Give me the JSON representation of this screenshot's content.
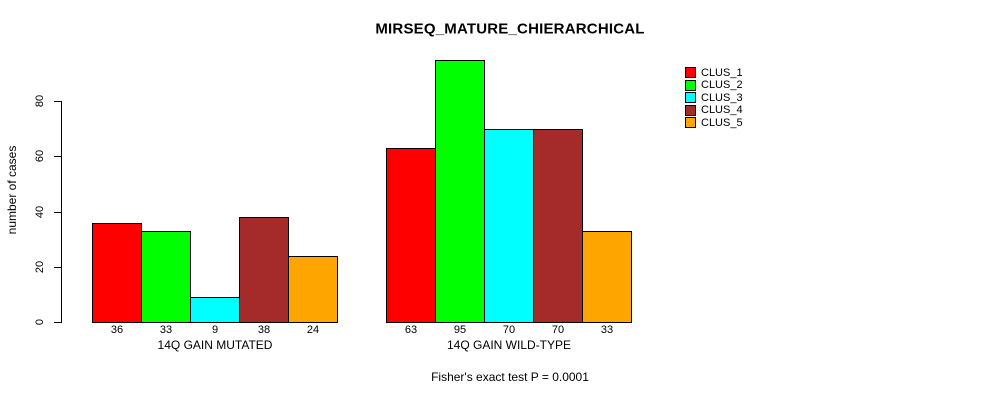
{
  "chart_data": {
    "type": "bar",
    "title": "MIRSEQ_MATURE_CHIERARCHICAL",
    "xlabel": "",
    "ylabel": "number of cases",
    "categories": [
      "14Q GAIN MUTATED",
      "14Q GAIN WILD-TYPE"
    ],
    "series": [
      {
        "name": "CLUS_1",
        "color": "#FF0000",
        "values": [
          36,
          63
        ]
      },
      {
        "name": "CLUS_2",
        "color": "#00FF00",
        "values": [
          33,
          95
        ]
      },
      {
        "name": "CLUS_3",
        "color": "#00FFFF",
        "values": [
          9,
          70
        ]
      },
      {
        "name": "CLUS_4",
        "color": "#A52A2A",
        "values": [
          38,
          70
        ]
      },
      {
        "name": "CLUS_5",
        "color": "#FFA500",
        "values": [
          24,
          33
        ]
      }
    ],
    "yticks": [
      0,
      20,
      40,
      60,
      80
    ],
    "ylim": [
      0,
      95
    ],
    "grid": false,
    "bar_value_labels_shown": true,
    "legend_position": "top-right",
    "annotation": "Fisher's exact test P = 0.0001",
    "colors": {
      "background": "#FFFFFF",
      "axis": "#000000",
      "bar_border": "#000000",
      "text": "#000000"
    }
  }
}
